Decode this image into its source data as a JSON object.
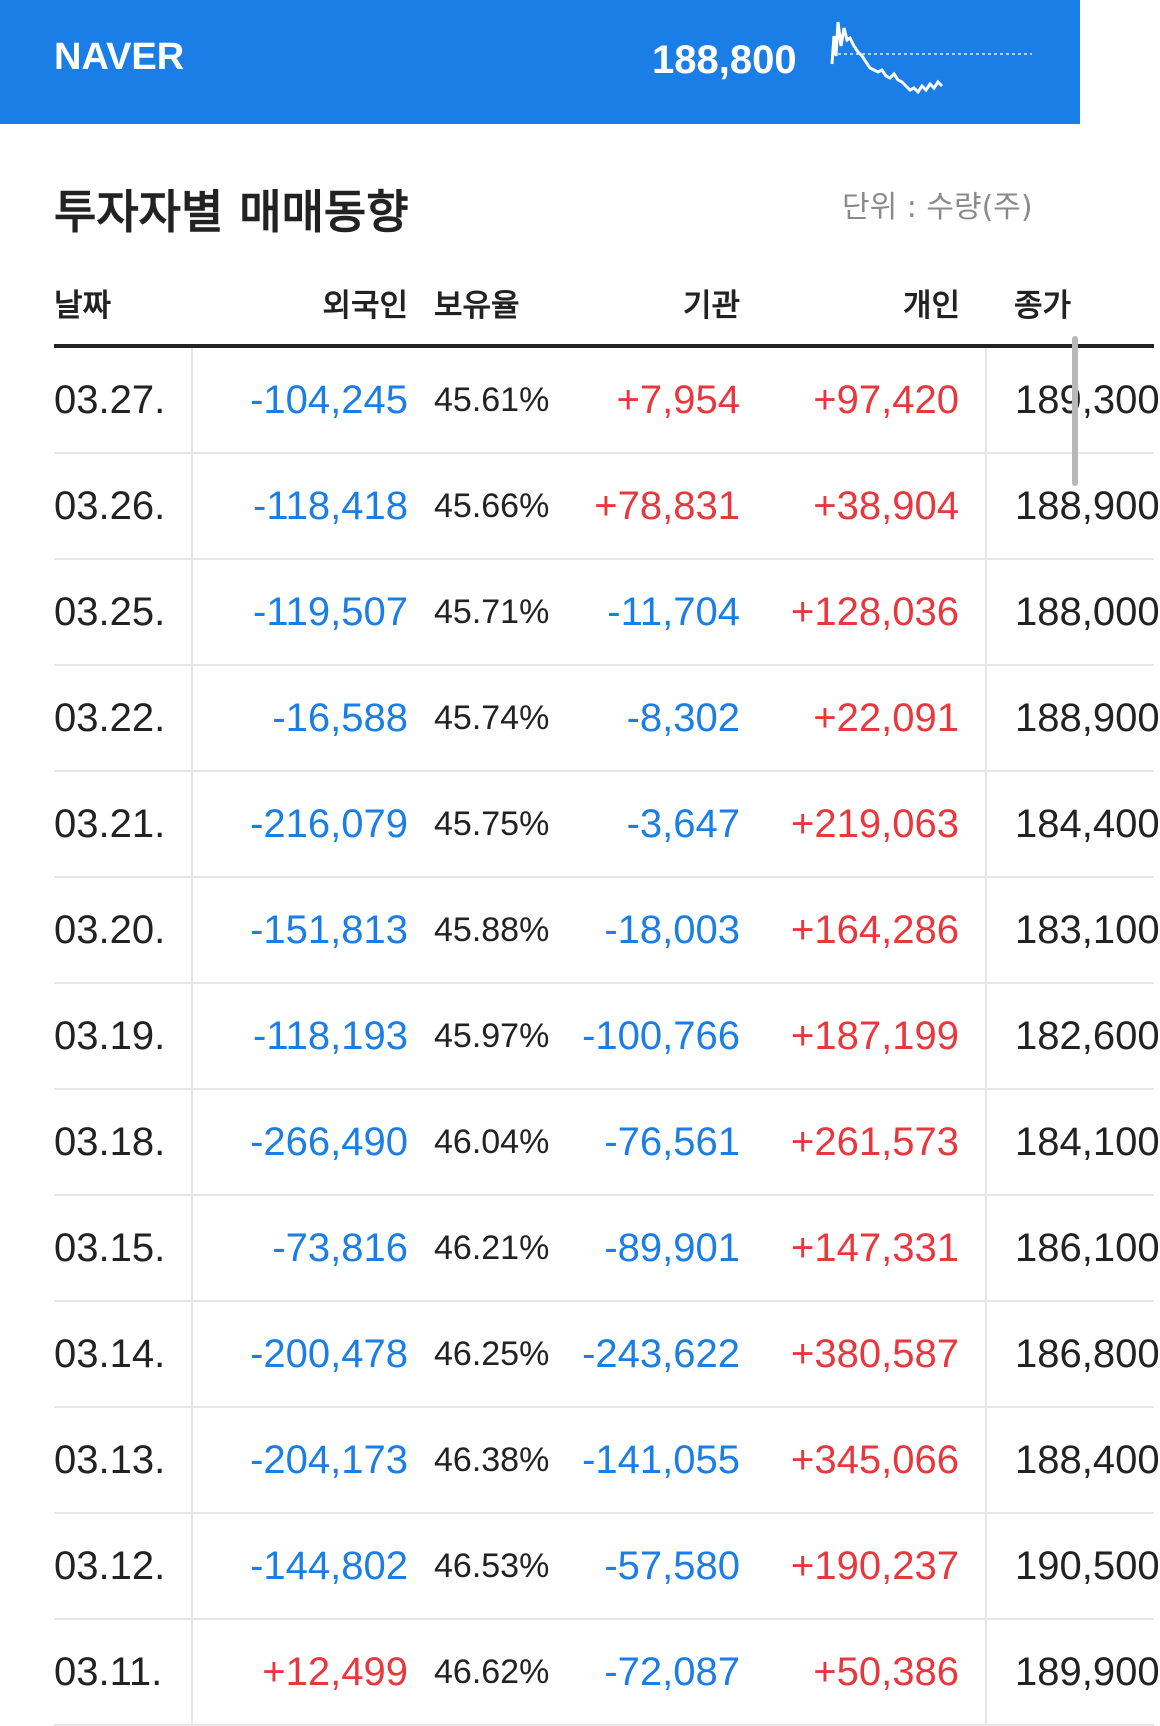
{
  "header": {
    "brand": "NAVER",
    "price": "188,800",
    "accent_color": "#1a7ee6"
  },
  "section": {
    "title": "투자자별 매매동향",
    "unit": "단위 : 수량(주)"
  },
  "table": {
    "headers": [
      "날짜",
      "외국인",
      "보유율",
      "기관",
      "개인",
      "종가"
    ],
    "rows": [
      {
        "date": "03.27.",
        "foreign": "-104,245",
        "own": "45.61%",
        "inst": "+7,954",
        "indiv": "+97,420",
        "close": "189,300"
      },
      {
        "date": "03.26.",
        "foreign": "-118,418",
        "own": "45.66%",
        "inst": "+78,831",
        "indiv": "+38,904",
        "close": "188,900"
      },
      {
        "date": "03.25.",
        "foreign": "-119,507",
        "own": "45.71%",
        "inst": "-11,704",
        "indiv": "+128,036",
        "close": "188,000"
      },
      {
        "date": "03.22.",
        "foreign": "-16,588",
        "own": "45.74%",
        "inst": "-8,302",
        "indiv": "+22,091",
        "close": "188,900"
      },
      {
        "date": "03.21.",
        "foreign": "-216,079",
        "own": "45.75%",
        "inst": "-3,647",
        "indiv": "+219,063",
        "close": "184,400"
      },
      {
        "date": "03.20.",
        "foreign": "-151,813",
        "own": "45.88%",
        "inst": "-18,003",
        "indiv": "+164,286",
        "close": "183,100"
      },
      {
        "date": "03.19.",
        "foreign": "-118,193",
        "own": "45.97%",
        "inst": "-100,766",
        "indiv": "+187,199",
        "close": "182,600"
      },
      {
        "date": "03.18.",
        "foreign": "-266,490",
        "own": "46.04%",
        "inst": "-76,561",
        "indiv": "+261,573",
        "close": "184,100"
      },
      {
        "date": "03.15.",
        "foreign": "-73,816",
        "own": "46.21%",
        "inst": "-89,901",
        "indiv": "+147,331",
        "close": "186,100"
      },
      {
        "date": "03.14.",
        "foreign": "-200,478",
        "own": "46.25%",
        "inst": "-243,622",
        "indiv": "+380,587",
        "close": "186,800"
      },
      {
        "date": "03.13.",
        "foreign": "-204,173",
        "own": "46.38%",
        "inst": "-141,055",
        "indiv": "+345,066",
        "close": "188,400"
      },
      {
        "date": "03.12.",
        "foreign": "-144,802",
        "own": "46.53%",
        "inst": "-57,580",
        "indiv": "+190,237",
        "close": "190,500"
      },
      {
        "date": "03.11.",
        "foreign": "+12,499",
        "own": "46.62%",
        "inst": "-72,087",
        "indiv": "+50,386",
        "close": "189,900"
      }
    ]
  }
}
